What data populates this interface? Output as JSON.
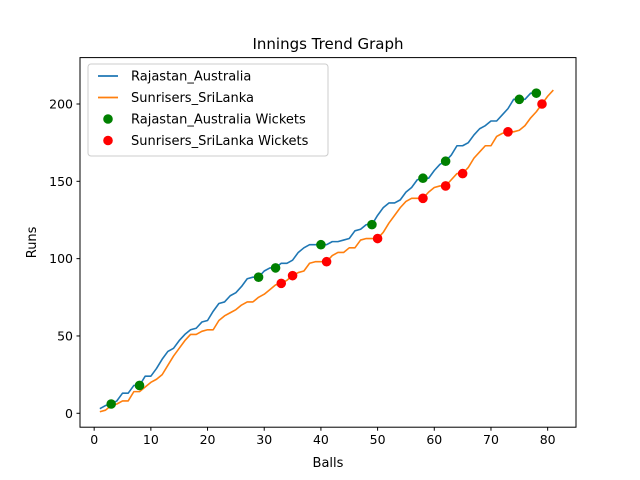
{
  "chart_data": {
    "type": "line",
    "title": "Innings Trend Graph",
    "xlabel": "Balls",
    "ylabel": "Runs",
    "xlim": [
      -2.5,
      85
    ],
    "ylim": [
      -9,
      230
    ],
    "xticks": [
      0,
      10,
      20,
      30,
      40,
      50,
      60,
      70,
      80
    ],
    "yticks": [
      0,
      50,
      100,
      150,
      200
    ],
    "grid": false,
    "legend_position": "upper-left",
    "series": [
      {
        "name": "Rajastan_Australia",
        "kind": "line",
        "color": "#1f77b4",
        "x": [
          1,
          2,
          3,
          4,
          5,
          6,
          7,
          8,
          9,
          10,
          11,
          12,
          13,
          14,
          15,
          16,
          17,
          18,
          19,
          20,
          21,
          22,
          23,
          24,
          25,
          26,
          27,
          28,
          29,
          30,
          31,
          32,
          33,
          34,
          35,
          36,
          37,
          38,
          39,
          40,
          41,
          42,
          43,
          44,
          45,
          46,
          47,
          48,
          49,
          50,
          51,
          52,
          53,
          54,
          55,
          56,
          57,
          58,
          59,
          60,
          61,
          62,
          63,
          64,
          65,
          66,
          67,
          68,
          69,
          70,
          71,
          72,
          73,
          74,
          75,
          76,
          77,
          78
        ],
        "y": [
          3,
          5,
          6,
          8,
          13,
          13,
          18,
          18,
          24,
          24,
          29,
          35,
          40,
          42,
          47,
          51,
          54,
          55,
          59,
          60,
          66,
          71,
          72,
          76,
          78,
          82,
          87,
          88,
          88,
          92,
          94,
          94,
          97,
          97,
          99,
          104,
          107,
          109,
          109,
          109,
          109,
          111,
          111,
          112,
          113,
          118,
          119,
          122,
          122,
          128,
          133,
          136,
          136,
          138,
          143,
          146,
          151,
          152,
          152,
          157,
          161,
          163,
          167,
          173,
          173,
          175,
          180,
          184,
          186,
          189,
          189,
          193,
          197,
          203,
          203,
          203,
          207,
          207
        ]
      },
      {
        "name": "Sunrisers_SriLanka",
        "kind": "line",
        "color": "#ff7f0e",
        "x": [
          1,
          2,
          3,
          4,
          5,
          6,
          7,
          8,
          9,
          10,
          11,
          12,
          13,
          14,
          15,
          16,
          17,
          18,
          19,
          20,
          21,
          22,
          23,
          24,
          25,
          26,
          27,
          28,
          29,
          30,
          31,
          32,
          33,
          34,
          35,
          36,
          37,
          38,
          39,
          40,
          41,
          42,
          43,
          44,
          45,
          46,
          47,
          48,
          49,
          50,
          51,
          52,
          53,
          54,
          55,
          56,
          57,
          58,
          59,
          60,
          61,
          62,
          63,
          64,
          65,
          66,
          67,
          68,
          69,
          70,
          71,
          72,
          73,
          74,
          75,
          76,
          77,
          78,
          79,
          80,
          81
        ],
        "y": [
          1,
          2,
          5,
          6,
          8,
          8,
          14,
          14,
          17,
          20,
          22,
          25,
          31,
          37,
          42,
          47,
          51,
          51,
          53,
          54,
          54,
          60,
          63,
          65,
          67,
          70,
          72,
          72,
          75,
          77,
          80,
          83,
          84,
          86,
          89,
          91,
          92,
          97,
          98,
          98,
          98,
          102,
          104,
          104,
          107,
          107,
          112,
          113,
          113,
          113,
          117,
          123,
          128,
          133,
          137,
          139,
          139,
          139,
          143,
          146,
          147,
          147,
          151,
          155,
          155,
          159,
          165,
          169,
          173,
          173,
          179,
          181,
          182,
          182,
          183,
          186,
          191,
          195,
          200,
          205,
          209
        ]
      },
      {
        "name": "Rajastan_Australia Wickets",
        "kind": "markers",
        "color": "#008000",
        "x": [
          3,
          8,
          29,
          32,
          40,
          49,
          58,
          62,
          75,
          78
        ],
        "y": [
          6,
          18,
          88,
          94,
          109,
          122,
          152,
          163,
          203,
          207
        ]
      },
      {
        "name": "Sunrisers_SriLanka Wickets",
        "kind": "markers",
        "color": "#ff0000",
        "x": [
          33,
          35,
          41,
          50,
          58,
          62,
          65,
          73,
          79
        ],
        "y": [
          84,
          89,
          98,
          113,
          139,
          147,
          155,
          182,
          200
        ]
      }
    ]
  }
}
